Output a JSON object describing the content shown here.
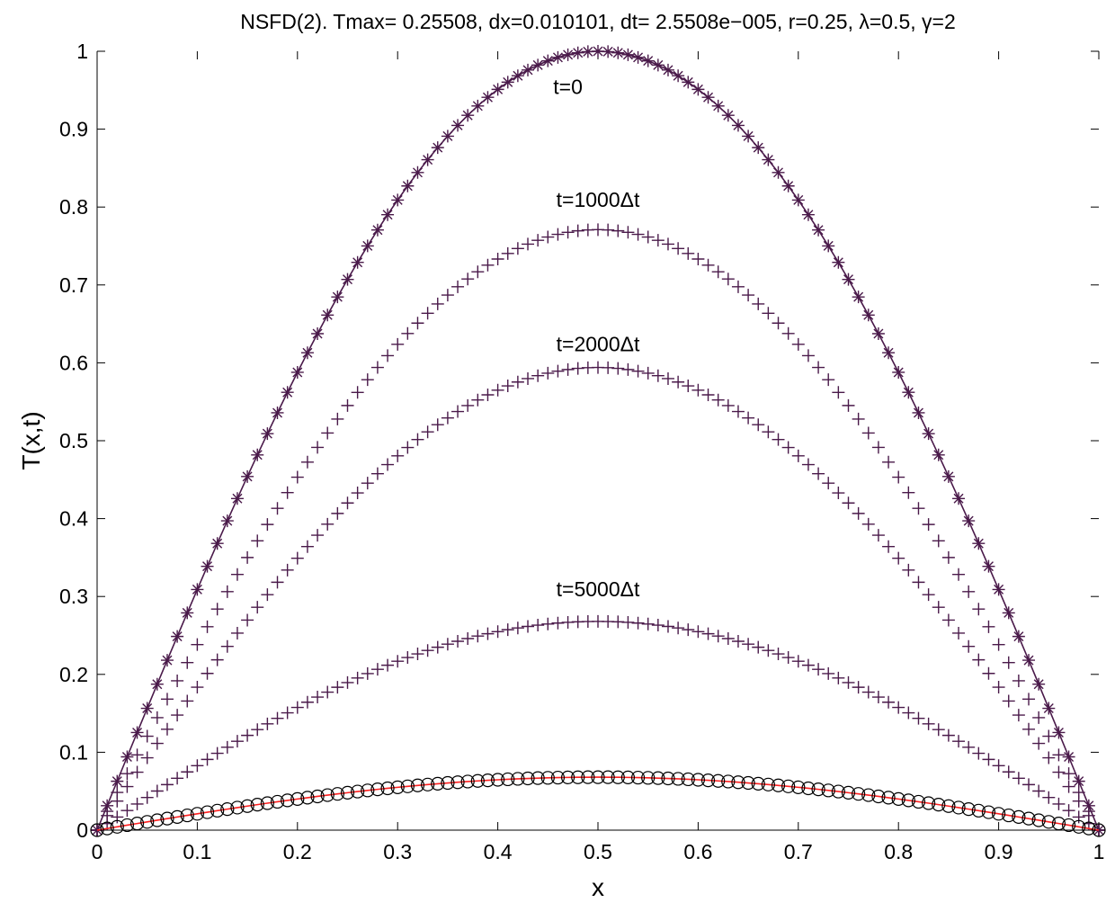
{
  "chart_data": {
    "type": "line",
    "title": "NSFD(2). Tmax= 0.25508, dx=0.010101, dt= 2.5508e−005, r=0.25, λ=0.5, γ=2",
    "xlabel": "x",
    "ylabel": "T(x,t)",
    "xlim": [
      0,
      1
    ],
    "ylim": [
      0,
      1
    ],
    "xticks": [
      "0",
      "0.1",
      "0.2",
      "0.3",
      "0.4",
      "0.5",
      "0.6",
      "0.7",
      "0.8",
      "0.9",
      "1"
    ],
    "yticks": [
      "0",
      "0.1",
      "0.2",
      "0.3",
      "0.4",
      "0.5",
      "0.6",
      "0.7",
      "0.8",
      "0.9",
      "1"
    ],
    "grid": false,
    "legend": "none",
    "n_points": 100,
    "dx": 0.010101,
    "series": [
      {
        "peak": 1.0,
        "marker": "asterisk",
        "line": true,
        "line_color": "#4a1a4a",
        "marker_color": "#4a1a4a"
      },
      {
        "peak": 0.771,
        "marker": "plus",
        "line": false,
        "marker_color": "#4a1a4a"
      },
      {
        "peak": 0.594,
        "marker": "plus",
        "line": false,
        "marker_color": "#4a1a4a"
      },
      {
        "peak": 0.268,
        "marker": "plus",
        "line": false,
        "marker_color": "#4a1a4a"
      },
      {
        "peak": 0.068,
        "marker": "circle",
        "line": true,
        "line_color": "#ff2020",
        "marker_color": "#000000"
      }
    ],
    "annotations": [
      {
        "text": "t=0",
        "x": 0.47,
        "y": 0.945
      },
      {
        "text": "t=1000Δt",
        "x": 0.5,
        "y": 0.8
      },
      {
        "text": "t=2000Δt",
        "x": 0.5,
        "y": 0.615
      },
      {
        "text": "t=5000Δt",
        "x": 0.5,
        "y": 0.3
      }
    ]
  }
}
